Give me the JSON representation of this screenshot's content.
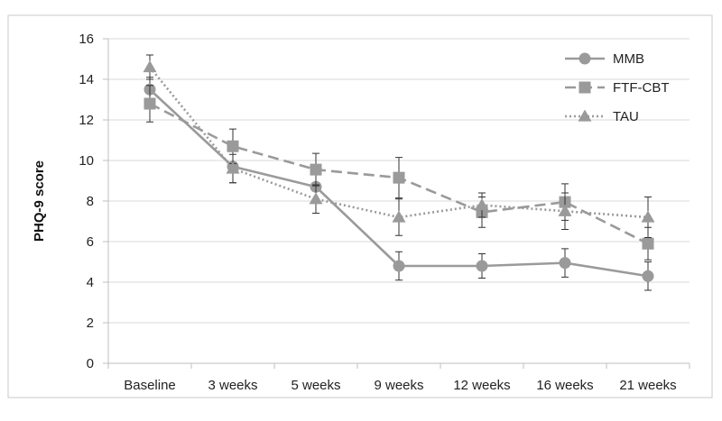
{
  "chart_data": {
    "type": "line",
    "title": "",
    "xlabel": "",
    "ylabel": "PHQ-9 score",
    "ylim": [
      0,
      16
    ],
    "yticks": [
      0,
      2,
      4,
      6,
      8,
      10,
      12,
      14,
      16
    ],
    "grid": true,
    "legend_position": "top-right",
    "categories": [
      "Baseline",
      "3 weeks",
      "5 weeks",
      "9 weeks",
      "12 weeks",
      "16 weeks",
      "21 weeks"
    ],
    "series": [
      {
        "name": "MMB",
        "marker": "circle",
        "line_style": "solid",
        "color": "#9a9a9a",
        "values": [
          13.5,
          9.7,
          8.7,
          4.8,
          4.8,
          4.95,
          4.3
        ],
        "error": [
          0.6,
          0.8,
          0.7,
          0.7,
          0.6,
          0.7,
          0.7
        ]
      },
      {
        "name": "FTF-CBT",
        "marker": "square",
        "line_style": "dashed",
        "color": "#9a9a9a",
        "values": [
          12.8,
          10.7,
          9.55,
          9.15,
          7.45,
          7.95,
          5.9
        ],
        "error": [
          0.9,
          0.85,
          0.8,
          1.0,
          0.75,
          0.9,
          0.8
        ]
      },
      {
        "name": "TAU",
        "marker": "triangle",
        "line_style": "dotted",
        "color": "#9a9a9a",
        "values": [
          14.6,
          9.6,
          8.1,
          7.2,
          7.8,
          7.5,
          7.2
        ],
        "error": [
          0.6,
          0.7,
          0.7,
          0.9,
          0.6,
          0.9,
          1.0
        ]
      }
    ]
  },
  "colors": {
    "axis": "#bfbfbf",
    "grid": "#d9d9d9",
    "border": "#bfbfbf",
    "errorbar": "#333333"
  }
}
